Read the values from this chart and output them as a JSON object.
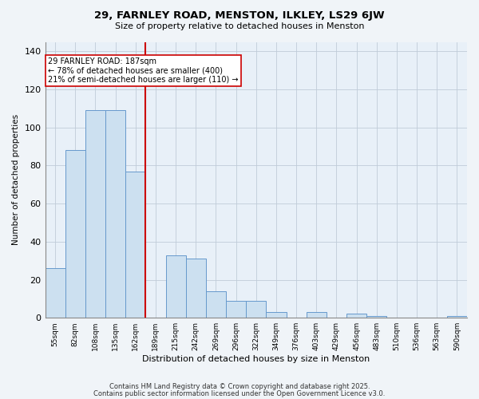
{
  "title": "29, FARNLEY ROAD, MENSTON, ILKLEY, LS29 6JW",
  "subtitle": "Size of property relative to detached houses in Menston",
  "xlabel": "Distribution of detached houses by size in Menston",
  "ylabel": "Number of detached properties",
  "categories": [
    "55sqm",
    "82sqm",
    "108sqm",
    "135sqm",
    "162sqm",
    "189sqm",
    "215sqm",
    "242sqm",
    "269sqm",
    "296sqm",
    "322sqm",
    "349sqm",
    "376sqm",
    "403sqm",
    "429sqm",
    "456sqm",
    "483sqm",
    "510sqm",
    "536sqm",
    "563sqm",
    "590sqm"
  ],
  "values": [
    26,
    88,
    109,
    109,
    77,
    0,
    33,
    31,
    14,
    9,
    9,
    3,
    0,
    3,
    0,
    2,
    1,
    0,
    0,
    0,
    1
  ],
  "bar_color": "#cce0f0",
  "bar_edge_color": "#6699cc",
  "vline_x_index": 5,
  "vline_color": "#cc0000",
  "annotation_line1": "29 FARNLEY ROAD: 187sqm",
  "annotation_line2": "← 78% of detached houses are smaller (400)",
  "annotation_line3": "21% of semi-detached houses are larger (110) →",
  "annotation_box_color": "#ffffff",
  "annotation_box_edge_color": "#cc0000",
  "ylim": [
    0,
    145
  ],
  "yticks": [
    0,
    20,
    40,
    60,
    80,
    100,
    120,
    140
  ],
  "footer1": "Contains HM Land Registry data © Crown copyright and database right 2025.",
  "footer2": "Contains public sector information licensed under the Open Government Licence v3.0.",
  "background_color": "#f0f4f8",
  "plot_background_color": "#e8f0f8",
  "grid_color": "#c0ccd8"
}
